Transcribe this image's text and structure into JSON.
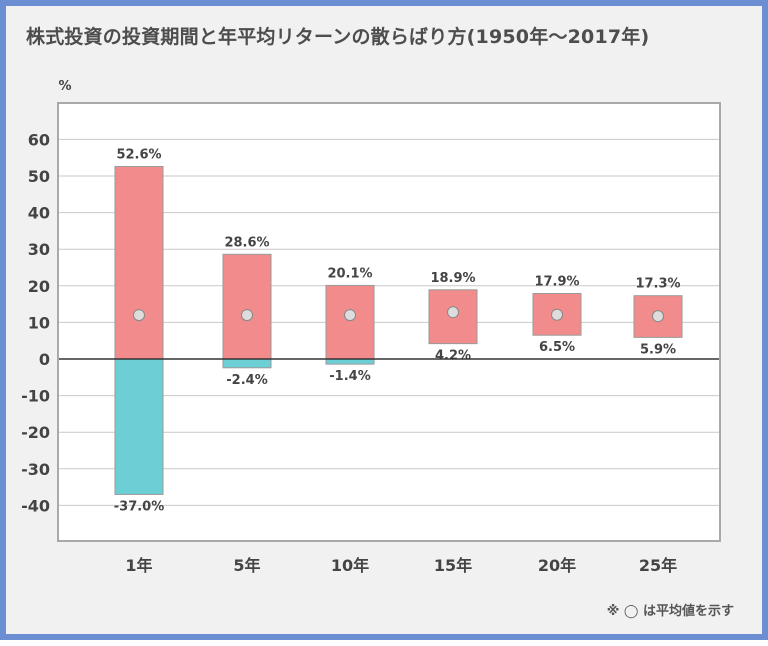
{
  "title": "株式投資の投資期間と年平均リターンの散らばり方(1950年～2017年)",
  "note": "※ ◯ は平均値を示す",
  "chart_data": {
    "type": "bar",
    "title": "株式投資の投資期間と年平均リターンの散らばり方(1950年～2017年)",
    "ylabel": "%",
    "xlabel": "",
    "ylim": [
      -50,
      70
    ],
    "yticks": [
      60,
      50,
      40,
      30,
      20,
      10,
      0,
      -10,
      -20,
      -30,
      -40
    ],
    "grid": true,
    "categories": [
      "1年",
      "5年",
      "10年",
      "15年",
      "20年",
      "25年"
    ],
    "series": [
      {
        "values": [
          52.6,
          28.6,
          20.1,
          18.9,
          17.9,
          17.3
        ],
        "labels": [
          "52.6%",
          "28.6%",
          "20.1%",
          "18.9%",
          "17.9%",
          "17.3%"
        ]
      },
      {
        "values": [
          -37.0,
          -2.4,
          -1.4,
          4.2,
          6.5,
          5.9
        ],
        "labels": [
          "-37.0%",
          "-2.4%",
          "-1.4%",
          "4.2%",
          "6.5%",
          "5.9%"
        ]
      }
    ],
    "mean": [
      12.0,
      12.0,
      12.0,
      12.8,
      12.1,
      11.7
    ],
    "colors": {
      "positive": "#f28b8b",
      "negative": "#6dcfd6",
      "mean_marker": "#dddddd"
    }
  }
}
